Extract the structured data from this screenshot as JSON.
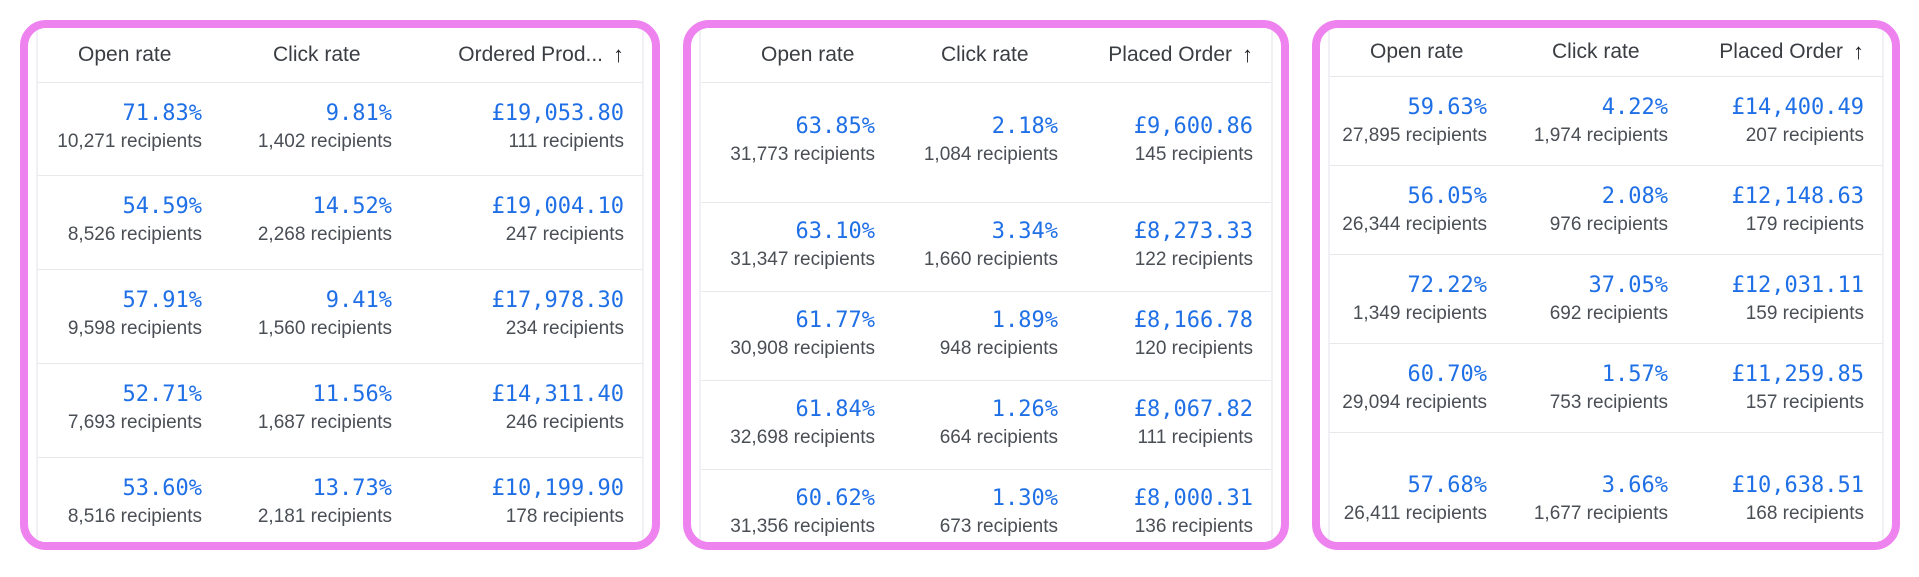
{
  "panels": [
    {
      "headers": {
        "open_rate": "Open rate",
        "click_rate": "Click rate",
        "sorted_column": "Ordered Prod...",
        "sort_icon": "arrow-up-icon"
      },
      "rows": [
        {
          "open": "71.83%",
          "open_sub": "10,271 recipients",
          "click": "9.81%",
          "click_sub": "1,402 recipients",
          "amount": "£19,053.80",
          "amount_sub": "111 recipients"
        },
        {
          "open": "54.59%",
          "open_sub": "8,526 recipients",
          "click": "14.52%",
          "click_sub": "2,268 recipients",
          "amount": "£19,004.10",
          "amount_sub": "247 recipients"
        },
        {
          "open": "57.91%",
          "open_sub": "9,598 recipients",
          "click": "9.41%",
          "click_sub": "1,560 recipients",
          "amount": "£17,978.30",
          "amount_sub": "234 recipients"
        },
        {
          "open": "52.71%",
          "open_sub": "7,693 recipients",
          "click": "11.56%",
          "click_sub": "1,687 recipients",
          "amount": "£14,311.40",
          "amount_sub": "246 recipients"
        },
        {
          "open": "53.60%",
          "open_sub": "8,516 recipients",
          "click": "13.73%",
          "click_sub": "2,181 recipients",
          "amount": "£10,199.90",
          "amount_sub": "178 recipients"
        }
      ]
    },
    {
      "headers": {
        "open_rate": "Open rate",
        "click_rate": "Click rate",
        "sorted_column": "Placed Order",
        "sort_icon": "arrow-up-icon"
      },
      "rows": [
        {
          "open": "63.85%",
          "open_sub": "31,773 recipients",
          "click": "2.18%",
          "click_sub": "1,084 recipients",
          "amount": "£9,600.86",
          "amount_sub": "145 recipients"
        },
        {
          "open": "63.10%",
          "open_sub": "31,347 recipients",
          "click": "3.34%",
          "click_sub": "1,660 recipients",
          "amount": "£8,273.33",
          "amount_sub": "122 recipients"
        },
        {
          "open": "61.77%",
          "open_sub": "30,908 recipients",
          "click": "1.89%",
          "click_sub": "948 recipients",
          "amount": "£8,166.78",
          "amount_sub": "120 recipients"
        },
        {
          "open": "61.84%",
          "open_sub": "32,698 recipients",
          "click": "1.26%",
          "click_sub": "664 recipients",
          "amount": "£8,067.82",
          "amount_sub": "111 recipients"
        },
        {
          "open": "60.62%",
          "open_sub": "31,356 recipients",
          "click": "1.30%",
          "click_sub": "673 recipients",
          "amount": "£8,000.31",
          "amount_sub": "136 recipients"
        }
      ]
    },
    {
      "headers": {
        "open_rate": "Open rate",
        "click_rate": "Click rate",
        "sorted_column": "Placed Order",
        "sort_icon": "arrow-up-icon"
      },
      "rows": [
        {
          "open": "59.63%",
          "open_sub": "27,895 recipients",
          "click": "4.22%",
          "click_sub": "1,974 recipients",
          "amount": "£14,400.49",
          "amount_sub": "207 recipients"
        },
        {
          "open": "56.05%",
          "open_sub": "26,344 recipients",
          "click": "2.08%",
          "click_sub": "976 recipients",
          "amount": "£12,148.63",
          "amount_sub": "179 recipients"
        },
        {
          "open": "72.22%",
          "open_sub": "1,349 recipients",
          "click": "37.05%",
          "click_sub": "692 recipients",
          "amount": "£12,031.11",
          "amount_sub": "159 recipients"
        },
        {
          "open": "60.70%",
          "open_sub": "29,094 recipients",
          "click": "1.57%",
          "click_sub": "753 recipients",
          "amount": "£11,259.85",
          "amount_sub": "157 recipients"
        },
        {
          "open": "57.68%",
          "open_sub": "26,411 recipients",
          "click": "3.66%",
          "click_sub": "1,677 recipients",
          "amount": "£10,638.51",
          "amount_sub": "168 recipients"
        }
      ]
    }
  ],
  "colors": {
    "highlight_border": "#ee82ee",
    "value_blue": "#1f6fe6",
    "secondary_text": "#4a4e55",
    "divider": "#e6e8ec"
  }
}
